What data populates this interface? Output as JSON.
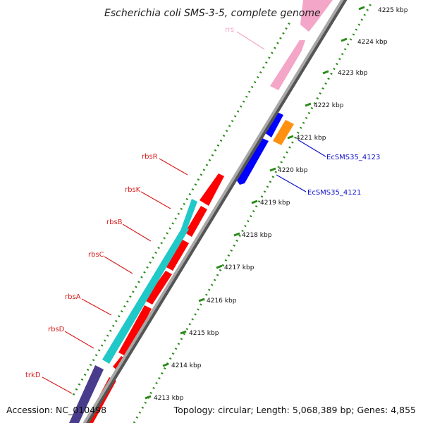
{
  "title": "Escherichia coli SMS-3-5, complete genome",
  "footer": {
    "accession": "Accession: NC_010498",
    "summary": "Topology: circular; Length: 5,068,389 bp; Genes: 4,855"
  },
  "ticks": [
    {
      "label": "4213 kbp"
    },
    {
      "label": "4214 kbp"
    },
    {
      "label": "4215 kbp"
    },
    {
      "label": "4216 kbp"
    },
    {
      "label": "4217 kbp"
    },
    {
      "label": "4218 kbp"
    },
    {
      "label": "4219 kbp"
    },
    {
      "label": "4220 kbp"
    },
    {
      "label": "4221 kbp"
    },
    {
      "label": "4222 kbp"
    },
    {
      "label": "4223 kbp"
    },
    {
      "label": "4224 kbp"
    },
    {
      "label": "4225 kbp"
    }
  ],
  "gene_labels": [
    {
      "text": "rrs",
      "color": "#f4a6c8"
    },
    {
      "text": "rbsR",
      "color": "#d62020"
    },
    {
      "text": "rbsK",
      "color": "#d62020"
    },
    {
      "text": "rbsB",
      "color": "#d62020"
    },
    {
      "text": "rbsC",
      "color": "#d62020"
    },
    {
      "text": "rbsA",
      "color": "#d62020"
    },
    {
      "text": "rbsD",
      "color": "#d62020"
    },
    {
      "text": "trkD",
      "color": "#d62020"
    },
    {
      "text": "EcSMS35_4123",
      "color": "#1010c8"
    },
    {
      "text": "EcSMS35_4121",
      "color": "#1010c8"
    }
  ],
  "colors": {
    "backbone": "#8c8c8c",
    "gc_dots": "#2a8a1a",
    "rRNA": "#f4a6c8",
    "cds": "#ff0000",
    "transport": "#20c8c8",
    "hypothetical": "#0000ff",
    "orange_gene": "#ff9010",
    "trk": "#4a3c8c"
  }
}
